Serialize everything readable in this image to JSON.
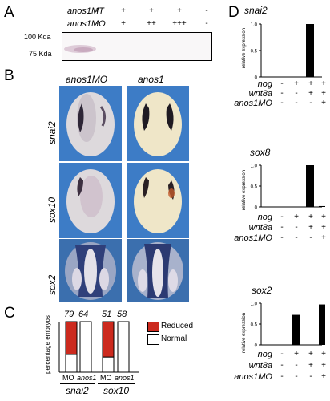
{
  "panels": {
    "a": "A",
    "b": "B",
    "c": "C",
    "d": "D"
  },
  "panel_a": {
    "row_labels": [
      "anos1MT",
      "anos1MO"
    ],
    "row1_signs": [
      "+",
      "+",
      "+",
      "+",
      "-"
    ],
    "row2_signs": [
      "-",
      "+",
      "++",
      "+++",
      "-"
    ],
    "mw_labels": [
      "100 Kda",
      "75 Kda"
    ]
  },
  "panel_b": {
    "col_labels": [
      "anos1MO",
      "anos1"
    ],
    "row_labels": [
      "snai2",
      "sox10",
      "sox2"
    ]
  },
  "panel_c": {
    "ylabel": "percentage embryos",
    "legend": [
      "Reduced",
      "Normal"
    ],
    "bar_tops": [
      "79",
      "64",
      "51",
      "58"
    ],
    "bar_labels": [
      "MO",
      "anos1",
      "MO",
      "anos1"
    ],
    "group_labels": [
      "snai2",
      "sox10"
    ]
  },
  "panel_d": {
    "ylabel": "relative expression",
    "row_labels": [
      "nog",
      "wnt8a",
      "anos1MO"
    ],
    "signs": {
      "nog": [
        "-",
        "+",
        "+",
        "+"
      ],
      "wnt8a": [
        "-",
        "-",
        "+",
        "+"
      ],
      "anos1MO": [
        "-",
        "-",
        "-",
        "+"
      ]
    },
    "charts": [
      {
        "title": "snai2",
        "ticks": [
          "1.0",
          "0.5",
          "0"
        ]
      },
      {
        "title": "sox8",
        "ticks": [
          "1.0",
          "0.5",
          "0"
        ]
      },
      {
        "title": "sox2",
        "ticks": [
          "1.0",
          "0.5",
          "0"
        ]
      }
    ]
  },
  "colors": {
    "reduced": "#cc2a1e",
    "normal": "#ffffff",
    "embryo_bg": "#3d7cc6"
  },
  "chart_data": [
    {
      "type": "bar",
      "title": "snai2",
      "ylabel": "relative expression",
      "categories": [
        "1",
        "2",
        "3",
        "4"
      ],
      "values": [
        0,
        0,
        1.0,
        0
      ],
      "ylim": [
        0,
        1.0
      ]
    },
    {
      "type": "bar",
      "title": "sox8",
      "ylabel": "relative expression",
      "categories": [
        "1",
        "2",
        "3",
        "4"
      ],
      "values": [
        0,
        0,
        1.0,
        0.02
      ],
      "ylim": [
        0,
        1.0
      ]
    },
    {
      "type": "bar",
      "title": "sox2",
      "ylabel": "relative expression",
      "categories": [
        "1",
        "2",
        "3",
        "4"
      ],
      "values": [
        0,
        0.72,
        0,
        0.97
      ],
      "ylim": [
        0,
        1.0
      ]
    },
    {
      "type": "bar",
      "title": "",
      "ylabel": "percentage embryos",
      "categories": [
        "MO",
        "anos1",
        "MO",
        "anos1"
      ],
      "series": [
        {
          "name": "Reduced",
          "values": [
            65,
            0,
            70,
            0
          ]
        },
        {
          "name": "Normal",
          "values": [
            35,
            100,
            30,
            100
          ]
        }
      ],
      "ylim": [
        0,
        100
      ]
    }
  ]
}
